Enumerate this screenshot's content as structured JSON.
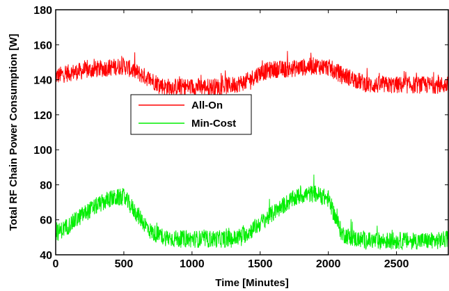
{
  "chart_data": {
    "type": "line",
    "title": "",
    "xlabel": "Time [Minutes]",
    "ylabel": "Total RF Chain  Power Consumption [W]",
    "xlim": [
      0,
      2880
    ],
    "ylim": [
      40,
      180
    ],
    "x_ticks": [
      0,
      500,
      1000,
      1500,
      2000,
      2500
    ],
    "x_tick_labels": [
      "0",
      "500",
      "1000",
      "1500",
      "2000",
      "2500"
    ],
    "y_ticks": [
      40,
      60,
      80,
      100,
      120,
      140,
      160,
      180
    ],
    "y_tick_labels": [
      "40",
      "60",
      "80",
      "100",
      "120",
      "140",
      "160",
      "180"
    ],
    "grid": false,
    "legend_position": "upper-left-center",
    "x": [
      0,
      100,
      200,
      300,
      400,
      500,
      600,
      700,
      800,
      900,
      1000,
      1100,
      1200,
      1300,
      1400,
      1500,
      1600,
      1700,
      1800,
      1900,
      2000,
      2100,
      2200,
      2300,
      2400,
      2500,
      2600,
      2700,
      2800,
      2880
    ],
    "series": [
      {
        "name": "All-On",
        "color": "#ff0000",
        "values": [
          142,
          144,
          145,
          146,
          147,
          148,
          144,
          140,
          136,
          136,
          136,
          136,
          136,
          137,
          139,
          144,
          146,
          146,
          147,
          148,
          147,
          143,
          140,
          137,
          137,
          137,
          137,
          137,
          137,
          137
        ],
        "noise": 5
      },
      {
        "name": "Min-Cost",
        "color": "#00ee00",
        "values": [
          52,
          57,
          63,
          68,
          72,
          73,
          63,
          53,
          50,
          49,
          49,
          49,
          49,
          49,
          52,
          58,
          64,
          70,
          74,
          75,
          72,
          52,
          49,
          48,
          48,
          48,
          48,
          48,
          48,
          49
        ],
        "noise": 5
      }
    ]
  }
}
